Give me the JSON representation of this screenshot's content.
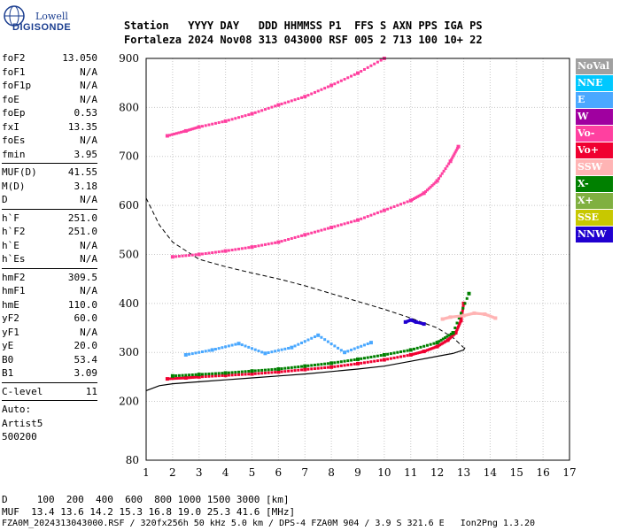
{
  "logo": {
    "line1": "Lowell",
    "line2": "DIGISONDE"
  },
  "header": {
    "line1": "Station   YYYY DAY   DDD HHMMSS P1  FFS S AXN PPS IGA PS",
    "line2": "Fortaleza 2024 Nov08 313 043000 RSF 005 2 713 100 10+ 22"
  },
  "params_group1": [
    {
      "label": "foF2",
      "value": "13.050"
    },
    {
      "label": "foF1",
      "value": "N/A"
    },
    {
      "label": "foF1p",
      "value": "N/A"
    },
    {
      "label": "foE",
      "value": "N/A"
    },
    {
      "label": "foEp",
      "value": "0.53"
    },
    {
      "label": "fxI",
      "value": "13.35"
    },
    {
      "label": "foEs",
      "value": "N/A"
    },
    {
      "label": "fmin",
      "value": "3.95"
    }
  ],
  "params_group2": [
    {
      "label": "MUF(D)",
      "value": "41.55"
    },
    {
      "label": "M(D)",
      "value": "3.18"
    },
    {
      "label": "D",
      "value": "N/A"
    }
  ],
  "params_group3": [
    {
      "label": "h`F",
      "value": "251.0"
    },
    {
      "label": "h`F2",
      "value": "251.0"
    },
    {
      "label": "h`E",
      "value": "N/A"
    },
    {
      "label": "h`Es",
      "value": "N/A"
    }
  ],
  "params_group4": [
    {
      "label": "hmF2",
      "value": "309.5"
    },
    {
      "label": "hmF1",
      "value": "N/A"
    },
    {
      "label": "hmE",
      "value": "110.0"
    },
    {
      "label": "yF2",
      "value": "60.0"
    },
    {
      "label": "yF1",
      "value": "N/A"
    },
    {
      "label": "yE",
      "value": "20.0"
    },
    {
      "label": "B0",
      "value": "53.4"
    },
    {
      "label": "B1",
      "value": "3.09"
    }
  ],
  "params_group5": [
    {
      "label": "C-level",
      "value": "11"
    }
  ],
  "autoscaler": {
    "line1": "Auto:",
    "line2": "Artist5",
    "line3": "500200"
  },
  "legend": [
    {
      "label": "NoVal",
      "color": "#a0a0a0"
    },
    {
      "label": "NNE",
      "color": "#00c8ff"
    },
    {
      "label": "E",
      "color": "#4aa8ff"
    },
    {
      "label": "W",
      "color": "#a000a0"
    },
    {
      "label": "Vo-",
      "color": "#ff40a0"
    },
    {
      "label": "Vo+",
      "color": "#f00030"
    },
    {
      "label": "SSW",
      "color": "#ffb4b4"
    },
    {
      "label": "X-",
      "color": "#008000"
    },
    {
      "label": "X+",
      "color": "#80b040"
    },
    {
      "label": "SSE",
      "color": "#c8c800"
    },
    {
      "label": "NNW",
      "color": "#2000d0"
    }
  ],
  "footer": {
    "distance_row": "D     100  200  400  600  800 1000 1500 3000 [km]",
    "muf_row": "MUF  13.4 13.6 14.2 15.3 16.8 19.0 25.3 41.6 [MHz]",
    "file_row": "FZA0M_2024313043000.RSF / 320fx256h 50 kHz 5.0 km / DPS-4 FZA0M 904 / 3.9 S 321.6 E   Ion2Png 1.3.20"
  },
  "chart_data": {
    "type": "scatter",
    "xlabel": "",
    "ylabel": "",
    "xlim": [
      1,
      17
    ],
    "ylim": [
      80,
      900
    ],
    "x_ticks": [
      1,
      2,
      3,
      4,
      5,
      6,
      7,
      8,
      9,
      10,
      11,
      12,
      13,
      14,
      15,
      16,
      17
    ],
    "y_ticks": [
      80,
      200,
      300,
      400,
      500,
      600,
      700,
      800,
      900
    ],
    "grid": true,
    "profile_curve": {
      "description_source": "solid line",
      "x": [
        1.0,
        1.5,
        2.0,
        3.0,
        4.0,
        5.0,
        6.0,
        7.0,
        8.0,
        9.0,
        10.0,
        11.0,
        12.0,
        12.6,
        13.0,
        13.05
      ],
      "y": [
        222,
        232,
        236,
        240,
        244,
        248,
        252,
        256,
        261,
        266,
        272,
        282,
        292,
        298,
        305,
        310
      ]
    },
    "dashed_curve": {
      "x": [
        1.0,
        1.5,
        2.0,
        3.0,
        4.0,
        5.0,
        6.0,
        7.0,
        8.0,
        9.0,
        10.0,
        11.0,
        12.0,
        12.6,
        13.0
      ],
      "y": [
        615,
        560,
        525,
        490,
        475,
        462,
        450,
        436,
        420,
        404,
        388,
        370,
        350,
        330,
        310
      ]
    },
    "traces": [
      {
        "name": "Vo+ F2 first hop",
        "color": "#f00030",
        "x": [
          1.8,
          2.5,
          3.0,
          4.0,
          5.0,
          6.0,
          7.0,
          8.0,
          9.0,
          10.0,
          11.0,
          11.5,
          12.0,
          12.4,
          12.7,
          12.9,
          13.0
        ],
        "y": [
          246,
          248,
          250,
          253,
          256,
          260,
          265,
          270,
          277,
          285,
          295,
          302,
          312,
          325,
          340,
          365,
          400
        ]
      },
      {
        "name": "Vo+ F2 second hop",
        "color": "#ff40a0",
        "x": [
          2.0,
          3.0,
          4.0,
          5.0,
          6.0,
          7.0,
          8.0,
          9.0,
          10.0,
          11.0,
          11.5,
          12.0,
          12.5,
          12.8
        ],
        "y": [
          495,
          500,
          507,
          515,
          525,
          540,
          555,
          570,
          590,
          610,
          625,
          650,
          690,
          720
        ]
      },
      {
        "name": "Vo+ F2 third hop",
        "color": "#ff40a0",
        "x": [
          1.8,
          2.5,
          3.0,
          4.0,
          5.0,
          6.0,
          7.0,
          8.0,
          9.0,
          10.0
        ],
        "y": [
          742,
          752,
          760,
          772,
          787,
          805,
          822,
          845,
          870,
          900
        ]
      },
      {
        "name": "X- trace",
        "color": "#008000",
        "x": [
          2.0,
          3.0,
          4.0,
          5.0,
          6.0,
          7.0,
          8.0,
          9.0,
          10.0,
          11.0,
          12.0,
          12.6,
          13.2
        ],
        "y": [
          252,
          255,
          258,
          262,
          266,
          272,
          278,
          286,
          295,
          305,
          320,
          340,
          420
        ]
      },
      {
        "name": "SSW oblique",
        "color": "#ffb4b4",
        "x": [
          12.2,
          12.5,
          13.0,
          13.4,
          13.8,
          14.2
        ],
        "y": [
          368,
          372,
          375,
          380,
          378,
          370
        ]
      },
      {
        "name": "NNW oblique",
        "color": "#2000d0",
        "x": [
          10.8,
          11.0,
          11.2,
          11.5
        ],
        "y": [
          362,
          366,
          362,
          358
        ]
      },
      {
        "name": "E scatter",
        "color": "#4aa8ff",
        "x": [
          2.5,
          3.5,
          4.5,
          5.5,
          6.5,
          7.5,
          8.5,
          9.5
        ],
        "y": [
          295,
          305,
          318,
          298,
          310,
          335,
          300,
          320
        ]
      }
    ]
  }
}
